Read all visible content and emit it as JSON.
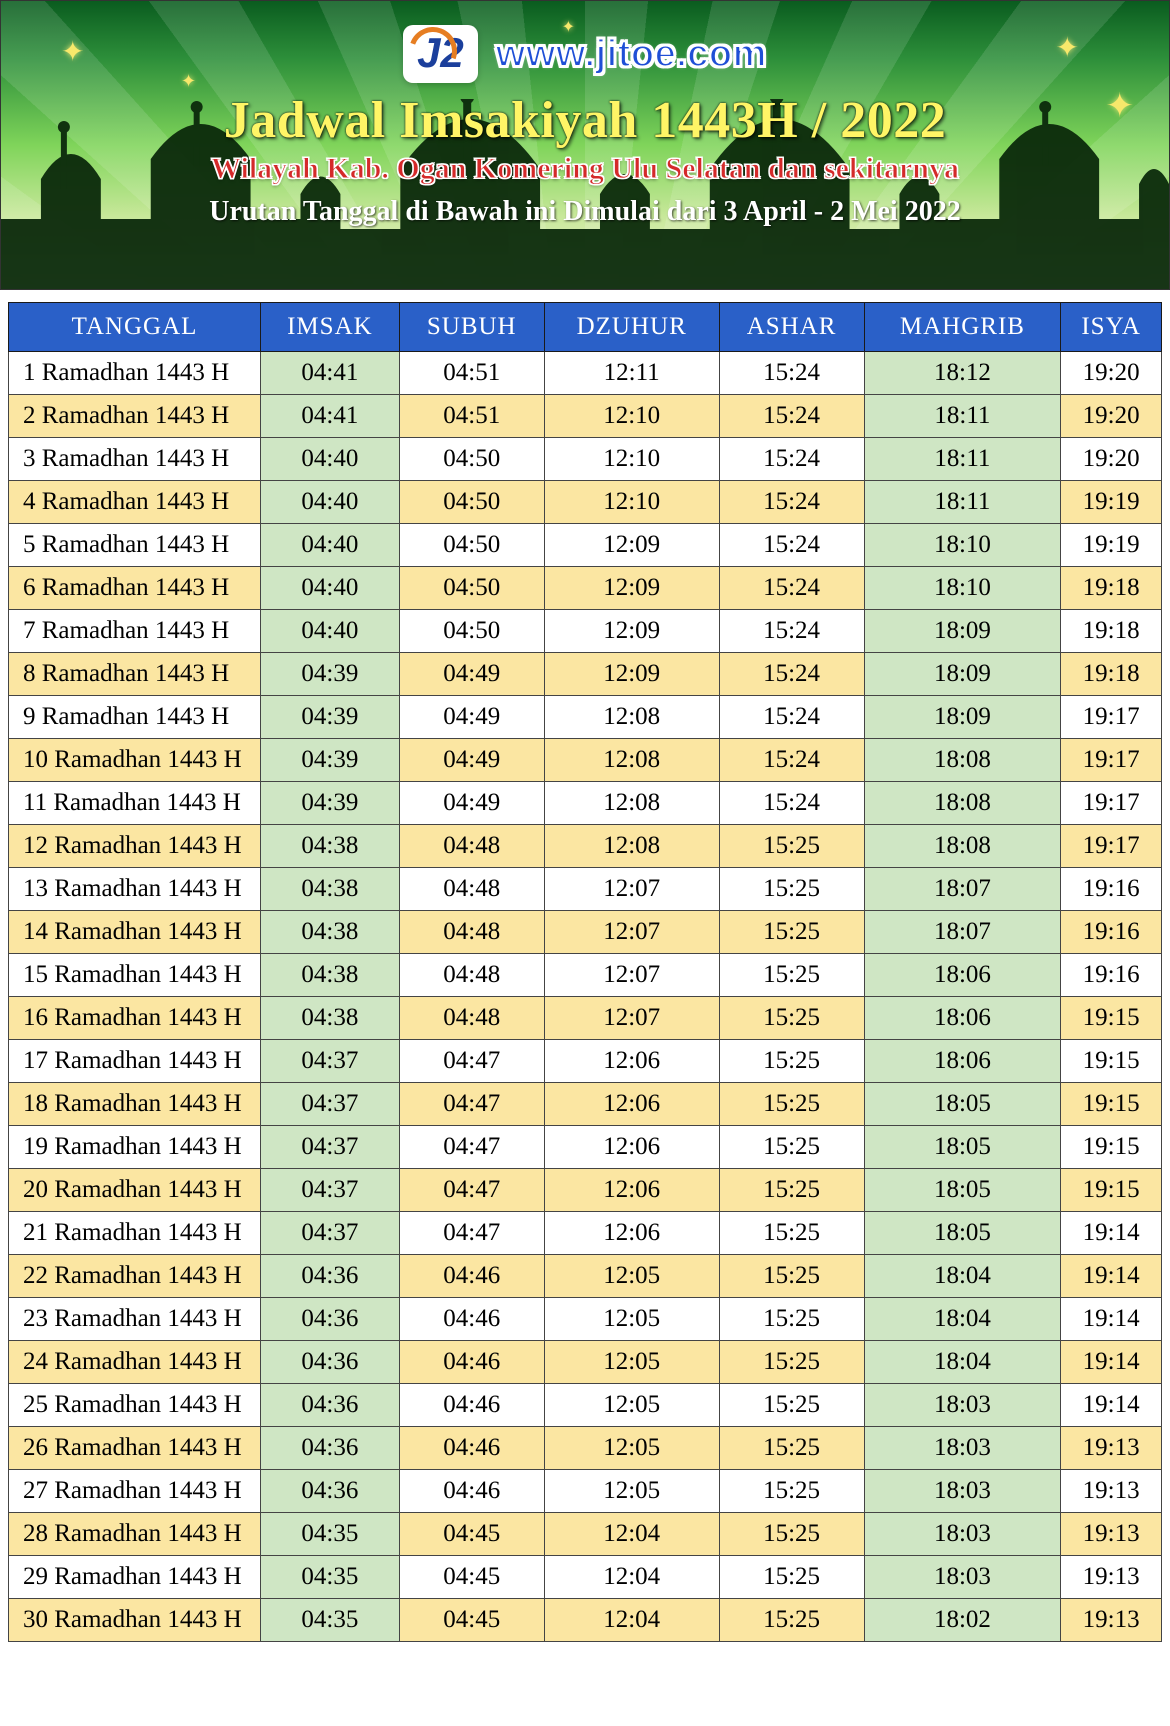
{
  "banner": {
    "site_url": "www.jitoe.com",
    "logo_text": "J2",
    "title": "Jadwal Imsakiyah 1443H / 2022",
    "subtitle": "Wilayah Kab. Ogan Komering Ulu Selatan dan sekitarnya",
    "date_range": "Urutan Tanggal di Bawah ini Dimulai dari 3 April - 2 Mei 2022",
    "colors": {
      "gradient_top": "#0a5c1f",
      "gradient_bottom": "#f5f8e0",
      "title_color": "#fff566",
      "subtitle_color": "#d42a2a",
      "range_color": "#ffffff",
      "url_color": "#1f4fd6"
    }
  },
  "table": {
    "header_bg": "#2a60c8",
    "header_fg": "#ffffff",
    "row_white_bg": "#ffffff",
    "row_yellow_bg": "#fbe6a2",
    "green_cell_bg": "#cfe6c4",
    "border_color": "#444444",
    "columns": [
      "TANGGAL",
      "IMSAK",
      "SUBUH",
      "DZUHUR",
      "ASHAR",
      "MAHGRIB",
      "ISYA"
    ],
    "green_columns": [
      1,
      4
    ],
    "rows": [
      {
        "date": "1 Ramadhan 1443 H",
        "imsak": "04:41",
        "subuh": "04:51",
        "dzuhur": "12:11",
        "ashar": "15:24",
        "mahgrib": "18:12",
        "isya": "19:20"
      },
      {
        "date": "2 Ramadhan 1443 H",
        "imsak": "04:41",
        "subuh": "04:51",
        "dzuhur": "12:10",
        "ashar": "15:24",
        "mahgrib": "18:11",
        "isya": "19:20"
      },
      {
        "date": "3 Ramadhan 1443 H",
        "imsak": "04:40",
        "subuh": "04:50",
        "dzuhur": "12:10",
        "ashar": "15:24",
        "mahgrib": "18:11",
        "isya": "19:20"
      },
      {
        "date": "4 Ramadhan 1443 H",
        "imsak": "04:40",
        "subuh": "04:50",
        "dzuhur": "12:10",
        "ashar": "15:24",
        "mahgrib": "18:11",
        "isya": "19:19"
      },
      {
        "date": "5 Ramadhan 1443 H",
        "imsak": "04:40",
        "subuh": "04:50",
        "dzuhur": "12:09",
        "ashar": "15:24",
        "mahgrib": "18:10",
        "isya": "19:19"
      },
      {
        "date": "6 Ramadhan 1443 H",
        "imsak": "04:40",
        "subuh": "04:50",
        "dzuhur": "12:09",
        "ashar": "15:24",
        "mahgrib": "18:10",
        "isya": "19:18"
      },
      {
        "date": "7 Ramadhan 1443 H",
        "imsak": "04:40",
        "subuh": "04:50",
        "dzuhur": "12:09",
        "ashar": "15:24",
        "mahgrib": "18:09",
        "isya": "19:18"
      },
      {
        "date": "8 Ramadhan 1443 H",
        "imsak": "04:39",
        "subuh": "04:49",
        "dzuhur": "12:09",
        "ashar": "15:24",
        "mahgrib": "18:09",
        "isya": "19:18"
      },
      {
        "date": "9 Ramadhan 1443 H",
        "imsak": "04:39",
        "subuh": "04:49",
        "dzuhur": "12:08",
        "ashar": "15:24",
        "mahgrib": "18:09",
        "isya": "19:17"
      },
      {
        "date": "10 Ramadhan 1443 H",
        "imsak": "04:39",
        "subuh": "04:49",
        "dzuhur": "12:08",
        "ashar": "15:24",
        "mahgrib": "18:08",
        "isya": "19:17"
      },
      {
        "date": "11 Ramadhan 1443 H",
        "imsak": "04:39",
        "subuh": "04:49",
        "dzuhur": "12:08",
        "ashar": "15:24",
        "mahgrib": "18:08",
        "isya": "19:17"
      },
      {
        "date": "12 Ramadhan 1443 H",
        "imsak": "04:38",
        "subuh": "04:48",
        "dzuhur": "12:08",
        "ashar": "15:25",
        "mahgrib": "18:08",
        "isya": "19:17"
      },
      {
        "date": "13 Ramadhan 1443 H",
        "imsak": "04:38",
        "subuh": "04:48",
        "dzuhur": "12:07",
        "ashar": "15:25",
        "mahgrib": "18:07",
        "isya": "19:16"
      },
      {
        "date": "14 Ramadhan 1443 H",
        "imsak": "04:38",
        "subuh": "04:48",
        "dzuhur": "12:07",
        "ashar": "15:25",
        "mahgrib": "18:07",
        "isya": "19:16"
      },
      {
        "date": "15 Ramadhan 1443 H",
        "imsak": "04:38",
        "subuh": "04:48",
        "dzuhur": "12:07",
        "ashar": "15:25",
        "mahgrib": "18:06",
        "isya": "19:16"
      },
      {
        "date": "16 Ramadhan 1443 H",
        "imsak": "04:38",
        "subuh": "04:48",
        "dzuhur": "12:07",
        "ashar": "15:25",
        "mahgrib": "18:06",
        "isya": "19:15"
      },
      {
        "date": "17 Ramadhan 1443 H",
        "imsak": "04:37",
        "subuh": "04:47",
        "dzuhur": "12:06",
        "ashar": "15:25",
        "mahgrib": "18:06",
        "isya": "19:15"
      },
      {
        "date": "18 Ramadhan 1443 H",
        "imsak": "04:37",
        "subuh": "04:47",
        "dzuhur": "12:06",
        "ashar": "15:25",
        "mahgrib": "18:05",
        "isya": "19:15"
      },
      {
        "date": "19 Ramadhan 1443 H",
        "imsak": "04:37",
        "subuh": "04:47",
        "dzuhur": "12:06",
        "ashar": "15:25",
        "mahgrib": "18:05",
        "isya": "19:15"
      },
      {
        "date": "20 Ramadhan 1443 H",
        "imsak": "04:37",
        "subuh": "04:47",
        "dzuhur": "12:06",
        "ashar": "15:25",
        "mahgrib": "18:05",
        "isya": "19:15"
      },
      {
        "date": "21 Ramadhan 1443 H",
        "imsak": "04:37",
        "subuh": "04:47",
        "dzuhur": "12:06",
        "ashar": "15:25",
        "mahgrib": "18:05",
        "isya": "19:14"
      },
      {
        "date": "22 Ramadhan 1443 H",
        "imsak": "04:36",
        "subuh": "04:46",
        "dzuhur": "12:05",
        "ashar": "15:25",
        "mahgrib": "18:04",
        "isya": "19:14"
      },
      {
        "date": "23 Ramadhan 1443 H",
        "imsak": "04:36",
        "subuh": "04:46",
        "dzuhur": "12:05",
        "ashar": "15:25",
        "mahgrib": "18:04",
        "isya": "19:14"
      },
      {
        "date": "24 Ramadhan 1443 H",
        "imsak": "04:36",
        "subuh": "04:46",
        "dzuhur": "12:05",
        "ashar": "15:25",
        "mahgrib": "18:04",
        "isya": "19:14"
      },
      {
        "date": "25 Ramadhan 1443 H",
        "imsak": "04:36",
        "subuh": "04:46",
        "dzuhur": "12:05",
        "ashar": "15:25",
        "mahgrib": "18:03",
        "isya": "19:14"
      },
      {
        "date": "26 Ramadhan 1443 H",
        "imsak": "04:36",
        "subuh": "04:46",
        "dzuhur": "12:05",
        "ashar": "15:25",
        "mahgrib": "18:03",
        "isya": "19:13"
      },
      {
        "date": "27 Ramadhan 1443 H",
        "imsak": "04:36",
        "subuh": "04:46",
        "dzuhur": "12:05",
        "ashar": "15:25",
        "mahgrib": "18:03",
        "isya": "19:13"
      },
      {
        "date": "28 Ramadhan 1443 H",
        "imsak": "04:35",
        "subuh": "04:45",
        "dzuhur": "12:04",
        "ashar": "15:25",
        "mahgrib": "18:03",
        "isya": "19:13"
      },
      {
        "date": "29 Ramadhan 1443 H",
        "imsak": "04:35",
        "subuh": "04:45",
        "dzuhur": "12:04",
        "ashar": "15:25",
        "mahgrib": "18:03",
        "isya": "19:13"
      },
      {
        "date": "30 Ramadhan 1443 H",
        "imsak": "04:35",
        "subuh": "04:45",
        "dzuhur": "12:04",
        "ashar": "15:25",
        "mahgrib": "18:02",
        "isya": "19:13"
      }
    ]
  }
}
